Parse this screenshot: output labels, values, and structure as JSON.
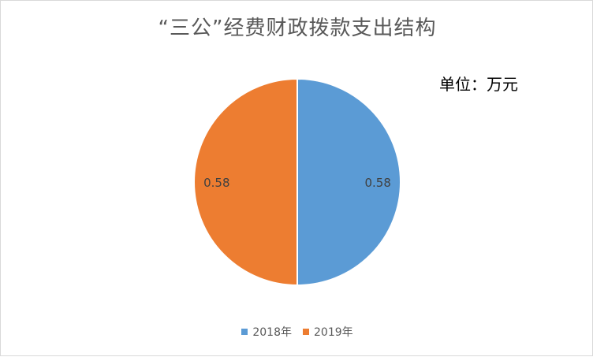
{
  "chart_data": {
    "type": "pie",
    "title": "“三公”经费财政拨款支出结构",
    "unit_note": "单位：万元",
    "categories": [
      "2018年",
      "2019年"
    ],
    "values": [
      0.58,
      0.58
    ],
    "data_labels": [
      "0.58",
      "0.58"
    ],
    "colors": [
      "#5b9bd5",
      "#ed7d31"
    ],
    "legend_position": "bottom"
  }
}
